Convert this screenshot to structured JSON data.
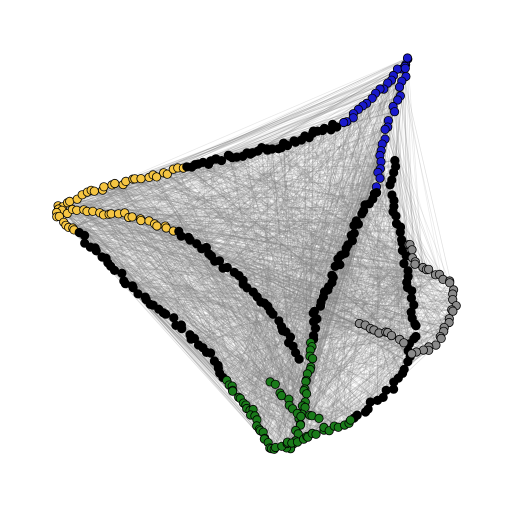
{
  "graph": {
    "type": "node-link-network",
    "edge_color": "#808080",
    "node_stroke": "#000000",
    "groups": [
      {
        "id": "yellow",
        "color": "#f5c542",
        "approx_node_count": 60
      },
      {
        "id": "blue",
        "color": "#1a1acc",
        "approx_node_count": 40
      },
      {
        "id": "black",
        "color": "#000000",
        "approx_node_count": 220
      },
      {
        "id": "gray",
        "color": "#8a8a8a",
        "approx_node_count": 45
      },
      {
        "id": "green",
        "color": "#1a7a1a",
        "approx_node_count": 70
      }
    ]
  }
}
